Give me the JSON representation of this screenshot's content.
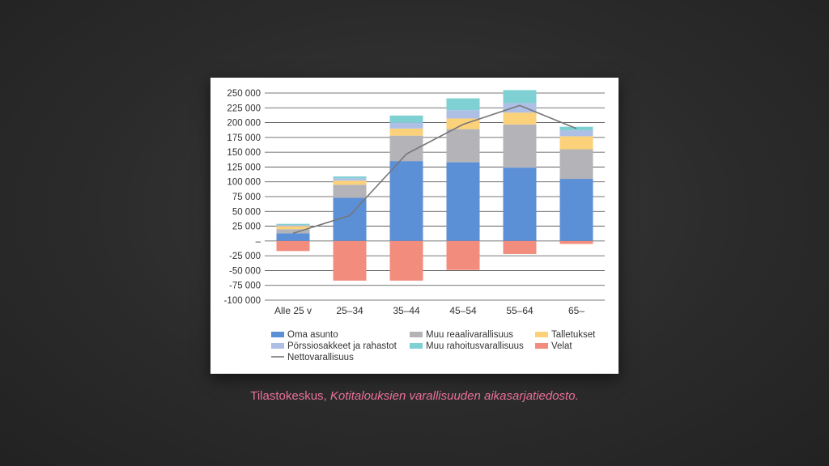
{
  "caption": {
    "source": "Tilastokeskus,",
    "title": "Kotitalouksien varallisuuden aikasarjatiedosto."
  },
  "colors": {
    "oma_asunto": "#5b8fd6",
    "muu_reaali": "#b4b4b8",
    "talletukset": "#fbd27a",
    "porssi": "#aebfe6",
    "muu_rahoitus": "#7fd0d2",
    "velat": "#f28c7c",
    "netto": "#777777"
  },
  "chart_data": {
    "type": "bar",
    "stacked": true,
    "categories": [
      "Alle 25 v",
      "25–34",
      "35–44",
      "45–54",
      "55–64",
      "65–"
    ],
    "ylim": [
      -100000,
      250000
    ],
    "yticks": [
      250000,
      225000,
      200000,
      175000,
      150000,
      125000,
      100000,
      75000,
      50000,
      25000,
      0,
      -25000,
      -50000,
      -75000,
      -100000
    ],
    "ytick_labels": [
      "250 000",
      "225 000",
      "200 000",
      "175 000",
      "150 000",
      "125 000",
      "100 000",
      "75 000",
      "50 000",
      "25 000",
      "–",
      "-25 000",
      "-50 000",
      "-75 000",
      "-100 000"
    ],
    "grid": true,
    "legend_position": "bottom",
    "series": [
      {
        "name": "Oma asunto",
        "key": "oma_asunto",
        "values": [
          13000,
          73000,
          135000,
          133000,
          124000,
          105000
        ]
      },
      {
        "name": "Muu reaalivarallisuus",
        "key": "muu_reaali",
        "values": [
          7000,
          22000,
          43000,
          56000,
          73000,
          50000
        ]
      },
      {
        "name": "Talletukset",
        "key": "talletukset",
        "values": [
          5000,
          7000,
          12000,
          18000,
          20000,
          22000
        ]
      },
      {
        "name": "Pörssiosakkeet ja rahastot",
        "key": "porssi",
        "values": [
          2000,
          4000,
          10000,
          14000,
          16000,
          10000
        ]
      },
      {
        "name": "Muu rahoitusvarallisuus",
        "key": "muu_rahoitus",
        "values": [
          2000,
          3000,
          12000,
          20000,
          22000,
          6000
        ]
      },
      {
        "name": "Velat",
        "key": "velat",
        "values": [
          -17000,
          -67000,
          -67000,
          -49000,
          -22000,
          -5000
        ]
      }
    ],
    "line": {
      "name": "Nettovarallisuus",
      "key": "netto",
      "values": [
        13000,
        43000,
        147000,
        197000,
        229000,
        190000
      ]
    }
  }
}
